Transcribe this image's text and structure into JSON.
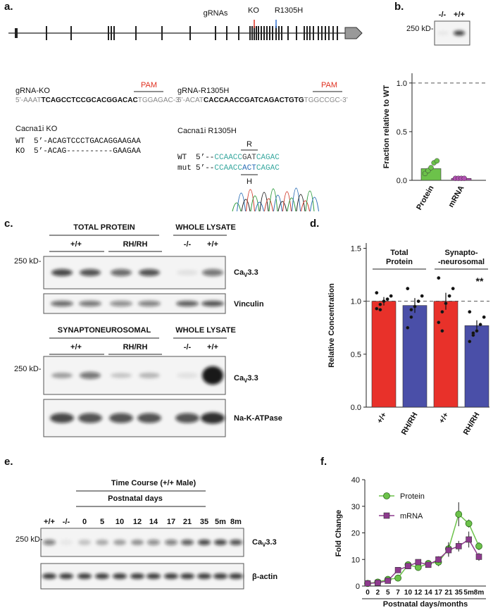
{
  "panel_labels": [
    "a.",
    "b.",
    "c.",
    "d.",
    "e.",
    "f."
  ],
  "gene_map": {
    "grnas": "gRNAs",
    "ko": "KO",
    "r1305h": "R1305H"
  },
  "grna_ko": {
    "name": "gRNA-KO",
    "pam": "PAM",
    "seq": [
      "5’-AAAT",
      "TCAGCCTCCGCACGGACAC",
      "TGGAGAC-3’"
    ]
  },
  "grna_r1305h": {
    "name": "gRNA-R1305H",
    "pam": "PAM",
    "seq": [
      "5’-ACAT",
      "CACCAACCGATCAGACTGTG",
      "TGGCCGC-3’"
    ]
  },
  "ko_alignment": {
    "title": "Cacna1i KO",
    "rows": [
      {
        "label": "WT",
        "seq": "5’-ACAGTCCCTGACAGGAAGAA"
      },
      {
        "label": "KO",
        "seq": "5’-ACAG----------GAAGAA"
      }
    ]
  },
  "r1305h_alignment": {
    "title": "Cacna1i R1305H",
    "wt_residue": "R",
    "mut_residue": "H",
    "rows": [
      {
        "label": "WT",
        "seq": [
          "5’--",
          "CCAACC",
          "GAT",
          "CAGAC"
        ]
      },
      {
        "label": "mut",
        "seq": [
          "5’--",
          "CCAACC",
          "ACT",
          "CAGAC"
        ]
      }
    ]
  },
  "cav33": [
    "Ca",
    "V",
    "3.3"
  ],
  "blot_b": {
    "lanes": [
      "-/-",
      "+/+"
    ],
    "marker": "250 kD-"
  },
  "blot_c": {
    "top": {
      "headers": [
        "TOTAL PROTEIN",
        "WHOLE LYSATE"
      ],
      "lanes": [
        "+/+",
        "RH/RH",
        "-/-",
        "+/+"
      ],
      "marker": "250 kD-",
      "loading": "Vinculin"
    },
    "bottom": {
      "headers": [
        "SYNAPTONEUROSOMAL",
        "WHOLE LYSATE"
      ],
      "lanes": [
        "+/+",
        "RH/RH",
        "-/-",
        "+/+"
      ],
      "marker": "250 kD-",
      "loading": "Na-K-ATPase"
    }
  },
  "blot_e": {
    "header": "Time Course (+/+ Male)",
    "subheader": "Postnatal days",
    "lanes": [
      "+/+",
      "-/-",
      "0",
      "5",
      "10",
      "12",
      "14",
      "17",
      "21",
      "35",
      "5m",
      "8m"
    ],
    "marker": "250 kD-",
    "loading": "β-actin"
  },
  "chart_data": [
    {
      "type": "bar",
      "ylabel": "Fraction relative to WT",
      "categories": [
        "Protein",
        "mRNA"
      ],
      "values": [
        0.12,
        0.02
      ],
      "colors": [
        "#6cc24a",
        "#b04fb0"
      ],
      "points": [
        [
          0.07,
          0.1,
          0.13,
          0.18,
          0.2
        ],
        [
          0.02,
          0.02,
          0.02,
          0.02
        ]
      ],
      "reference_line": 1,
      "ylim": [
        0,
        1.1
      ],
      "yticks": [
        {
          "value": 0,
          "label": "0.0"
        },
        0.5,
        {
          "value": 1,
          "label": "1.0"
        }
      ]
    },
    {
      "type": "bar",
      "ylabel": "Relative Concentration",
      "categories": [
        "+/+",
        "RH/RH",
        "+/+",
        "RH/RH"
      ],
      "values": [
        1.0,
        0.96,
        1.0,
        0.77
      ],
      "errors": [
        0.04,
        0.07,
        0.08,
        0.05
      ],
      "colors": [
        "#e8312a",
        "#4a4fa8",
        "#e8312a",
        "#4a4fa8"
      ],
      "points": [
        [
          0.93,
          0.97,
          1.0,
          1.02,
          1.05,
          1.08,
          0.92
        ],
        [
          0.75,
          0.85,
          0.95,
          1.0,
          1.05,
          1.12,
          0.92
        ],
        [
          0.8,
          0.9,
          0.98,
          1.05,
          1.12,
          1.22,
          0.72
        ],
        [
          0.62,
          0.68,
          0.72,
          0.78,
          0.85,
          0.9,
          0.7
        ]
      ],
      "group_labels": [
        [
          "Total",
          "Protein"
        ],
        [
          "Synapto-",
          "-neurosomal"
        ]
      ],
      "annotation": "**",
      "reference_line": 1,
      "ylim": [
        0,
        1.55
      ],
      "yticks": [
        {
          "value": 0,
          "label": "0.0"
        },
        0.5,
        {
          "value": 1,
          "label": "1.0"
        },
        1.5
      ]
    },
    {
      "type": "line",
      "ylabel": "Fold Change",
      "xlabel": "Postnatal days/months",
      "categories": [
        "0",
        "2",
        "5",
        "7",
        "10",
        "12",
        "14",
        "17",
        "21",
        "35",
        "5m",
        "8m"
      ],
      "series": [
        {
          "name": "Protein",
          "color": "#6cc24a",
          "marker": "circle",
          "values": [
            1,
            1.5,
            2.5,
            3,
            8,
            7,
            8.5,
            9,
            14,
            27,
            23.5,
            15
          ],
          "errors": [
            0.3,
            0.4,
            0.5,
            0.6,
            1,
            1,
            1,
            1.5,
            2.5,
            4.5,
            1.5,
            1.5
          ]
        },
        {
          "name": "mRNA",
          "color": "#8e3a8e",
          "marker": "square",
          "values": [
            1,
            1.2,
            2,
            6,
            7.5,
            9,
            8,
            10,
            13.5,
            15,
            17.5,
            11
          ],
          "errors": [
            0.2,
            0.3,
            0.5,
            0.8,
            1,
            1,
            1,
            1.2,
            2.5,
            2,
            3,
            1.5
          ]
        }
      ],
      "ylim": [
        0,
        40
      ],
      "yticks": [
        0,
        10,
        20,
        30,
        40
      ]
    }
  ]
}
